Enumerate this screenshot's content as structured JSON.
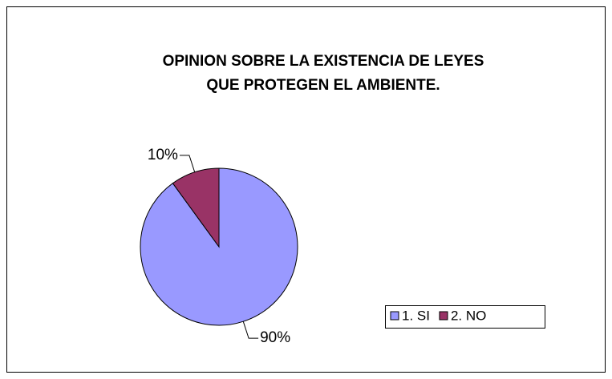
{
  "chart_data": {
    "type": "pie",
    "title": [
      "OPINION SOBRE LA EXISTENCIA DE LEYES",
      "QUE PROTEGEN EL AMBIENTE."
    ],
    "categories": [
      "1. SI",
      "2. NO"
    ],
    "values": [
      90,
      10
    ],
    "value_labels": [
      "90%",
      "10%"
    ],
    "colors": [
      "#9999ff",
      "#993366"
    ],
    "legend": "bottom-right"
  }
}
